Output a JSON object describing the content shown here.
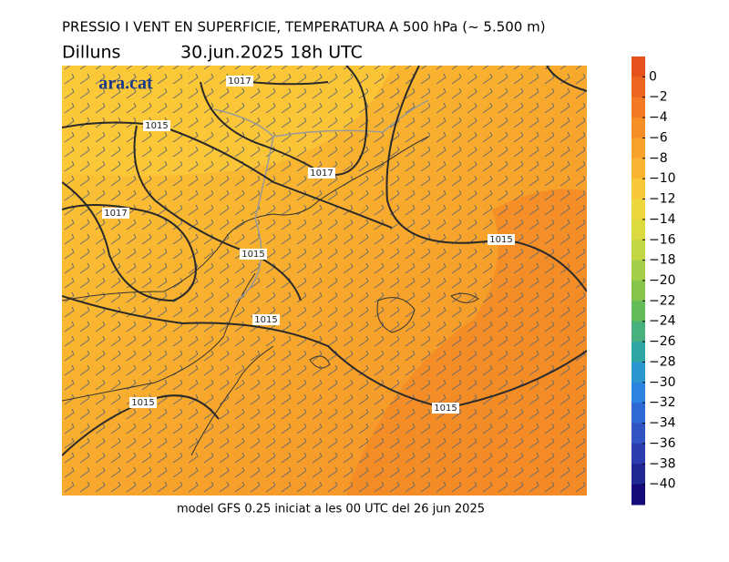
{
  "header": {
    "title": "PRESSIO I VENT EN SUPERFICIE, TEMPERATURA A 500 hPa (~ 5.500 m)",
    "day": "Dilluns",
    "date": "30.jun.2025 18h UTC"
  },
  "logo": "ara.cat",
  "isobars": [
    "1017",
    "1015",
    "1017",
    "1017",
    "1015",
    "1015",
    "1015",
    "1015",
    "1015"
  ],
  "footer": "model GFS 0.25 iniciat a les 00 UTC del 26 jun 2025",
  "colorbar": {
    "ticks": [
      {
        "value": 0,
        "label": "0"
      },
      {
        "value": -2,
        "label": "−2"
      },
      {
        "value": -4,
        "label": "−4"
      },
      {
        "value": -6,
        "label": "−6"
      },
      {
        "value": -8,
        "label": "−8"
      },
      {
        "value": -10,
        "label": "−10"
      },
      {
        "value": -12,
        "label": "−12"
      },
      {
        "value": -14,
        "label": "−14"
      },
      {
        "value": -16,
        "label": "−16"
      },
      {
        "value": -18,
        "label": "−18"
      },
      {
        "value": -20,
        "label": "−20"
      },
      {
        "value": -22,
        "label": "−22"
      },
      {
        "value": -24,
        "label": "−24"
      },
      {
        "value": -26,
        "label": "−26"
      },
      {
        "value": -28,
        "label": "−28"
      },
      {
        "value": -30,
        "label": "−30"
      },
      {
        "value": -32,
        "label": "−32"
      },
      {
        "value": -34,
        "label": "−34"
      },
      {
        "value": -36,
        "label": "−36"
      },
      {
        "value": -38,
        "label": "−38"
      },
      {
        "value": -40,
        "label": "−40"
      }
    ],
    "colors": [
      "#e5521c",
      "#ee6520",
      "#f37a22",
      "#f68e26",
      "#f8a22b",
      "#f9b531",
      "#f8c83a",
      "#eed63d",
      "#dbdb3f",
      "#c3d644",
      "#a5ce48",
      "#85c54b",
      "#62bc57",
      "#48b07c",
      "#2ea6a3",
      "#2a98cf",
      "#2b84e0",
      "#2f69d6",
      "#3253c2",
      "#2c3daf",
      "#222796",
      "#150a7a"
    ]
  }
}
